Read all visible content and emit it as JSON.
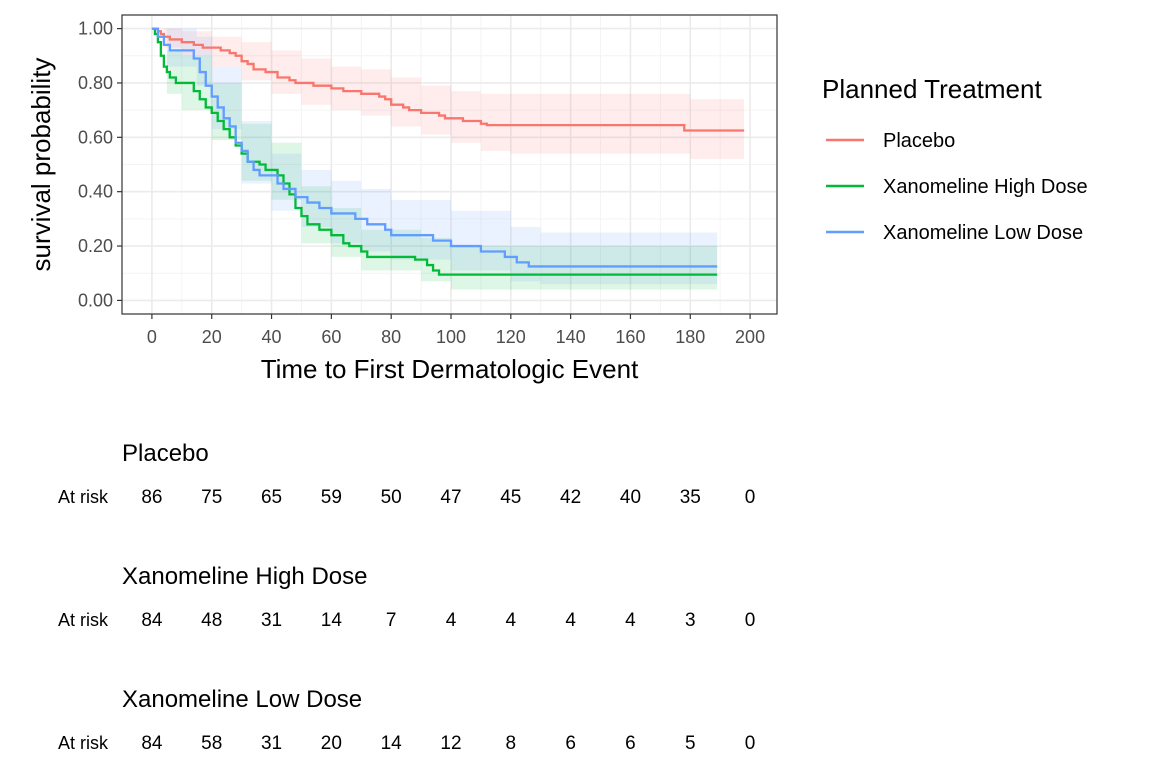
{
  "colors": {
    "placebo": "#F8766D",
    "high_dose": "#00BA38",
    "low_dose": "#619CFF",
    "panel_border": "#333333",
    "grid_major": "#ebebeb",
    "grid_minor": "#f4f4f4"
  },
  "chart_data": {
    "type": "line",
    "subtype": "kaplan-meier step",
    "xlabel": "Time to First Dermatologic Event",
    "ylabel": "survival probability",
    "xlim": [
      -10,
      209
    ],
    "ylim": [
      -0.05,
      1.05
    ],
    "x_ticks": [
      0,
      20,
      40,
      60,
      80,
      100,
      120,
      140,
      160,
      180,
      200
    ],
    "x_tick_labels": [
      "0",
      "20",
      "40",
      "60",
      "80",
      "100",
      "120",
      "140",
      "160",
      "180",
      "200"
    ],
    "y_ticks": [
      0,
      0.2,
      0.4,
      0.6,
      0.8,
      1.0
    ],
    "y_tick_labels": [
      "0.00",
      "0.20",
      "0.40",
      "0.60",
      "0.80",
      "1.00"
    ],
    "grid": true,
    "legend": {
      "title": "Planned Treatment",
      "placement": "right"
    },
    "series": [
      {
        "name": "Placebo",
        "color_key": "placebo",
        "steps": [
          [
            0,
            1.0
          ],
          [
            2,
            0.99
          ],
          [
            3,
            0.98
          ],
          [
            4,
            0.97
          ],
          [
            6,
            0.96
          ],
          [
            10,
            0.95
          ],
          [
            14,
            0.94
          ],
          [
            17,
            0.93
          ],
          [
            23,
            0.92
          ],
          [
            26,
            0.91
          ],
          [
            28,
            0.9
          ],
          [
            30,
            0.88
          ],
          [
            32,
            0.87
          ],
          [
            34,
            0.85
          ],
          [
            38,
            0.84
          ],
          [
            42,
            0.82
          ],
          [
            46,
            0.81
          ],
          [
            48,
            0.8
          ],
          [
            54,
            0.79
          ],
          [
            60,
            0.78
          ],
          [
            64,
            0.77
          ],
          [
            70,
            0.76
          ],
          [
            76,
            0.75
          ],
          [
            78,
            0.74
          ],
          [
            80,
            0.72
          ],
          [
            84,
            0.71
          ],
          [
            86,
            0.7
          ],
          [
            90,
            0.69
          ],
          [
            96,
            0.68
          ],
          [
            98,
            0.67
          ],
          [
            104,
            0.66
          ],
          [
            110,
            0.65
          ],
          [
            112,
            0.645
          ],
          [
            178,
            0.625
          ],
          [
            198,
            0.625
          ]
        ],
        "ci_lower": [
          [
            0,
            1.0
          ],
          [
            4,
            0.93
          ],
          [
            10,
            0.9
          ],
          [
            20,
            0.86
          ],
          [
            30,
            0.81
          ],
          [
            40,
            0.76
          ],
          [
            50,
            0.72
          ],
          [
            60,
            0.7
          ],
          [
            70,
            0.68
          ],
          [
            80,
            0.64
          ],
          [
            90,
            0.61
          ],
          [
            100,
            0.58
          ],
          [
            110,
            0.55
          ],
          [
            120,
            0.54
          ],
          [
            180,
            0.52
          ],
          [
            198,
            0.52
          ]
        ],
        "ci_upper": [
          [
            0,
            1.0
          ],
          [
            4,
            1.0
          ],
          [
            10,
            0.99
          ],
          [
            20,
            0.97
          ],
          [
            30,
            0.95
          ],
          [
            40,
            0.92
          ],
          [
            50,
            0.89
          ],
          [
            60,
            0.86
          ],
          [
            70,
            0.85
          ],
          [
            80,
            0.82
          ],
          [
            90,
            0.79
          ],
          [
            100,
            0.77
          ],
          [
            110,
            0.76
          ],
          [
            120,
            0.76
          ],
          [
            180,
            0.74
          ],
          [
            198,
            0.74
          ]
        ]
      },
      {
        "name": "Xanomeline High Dose",
        "color_key": "high_dose",
        "steps": [
          [
            0,
            1.0
          ],
          [
            1,
            0.98
          ],
          [
            2,
            0.95
          ],
          [
            3,
            0.9
          ],
          [
            4,
            0.86
          ],
          [
            5,
            0.84
          ],
          [
            6,
            0.82
          ],
          [
            8,
            0.8
          ],
          [
            14,
            0.77
          ],
          [
            16,
            0.74
          ],
          [
            18,
            0.71
          ],
          [
            20,
            0.69
          ],
          [
            22,
            0.66
          ],
          [
            24,
            0.63
          ],
          [
            26,
            0.6
          ],
          [
            28,
            0.57
          ],
          [
            30,
            0.54
          ],
          [
            32,
            0.51
          ],
          [
            36,
            0.5
          ],
          [
            38,
            0.48
          ],
          [
            42,
            0.46
          ],
          [
            44,
            0.43
          ],
          [
            46,
            0.39
          ],
          [
            48,
            0.34
          ],
          [
            50,
            0.31
          ],
          [
            52,
            0.28
          ],
          [
            56,
            0.26
          ],
          [
            60,
            0.24
          ],
          [
            64,
            0.21
          ],
          [
            66,
            0.2
          ],
          [
            70,
            0.18
          ],
          [
            72,
            0.16
          ],
          [
            88,
            0.15
          ],
          [
            92,
            0.13
          ],
          [
            94,
            0.11
          ],
          [
            96,
            0.095
          ],
          [
            189,
            0.095
          ]
        ],
        "ci_lower": [
          [
            0,
            1.0
          ],
          [
            5,
            0.76
          ],
          [
            10,
            0.7
          ],
          [
            20,
            0.59
          ],
          [
            30,
            0.44
          ],
          [
            40,
            0.37
          ],
          [
            50,
            0.21
          ],
          [
            60,
            0.16
          ],
          [
            70,
            0.11
          ],
          [
            90,
            0.07
          ],
          [
            100,
            0.04
          ],
          [
            189,
            0.04
          ]
        ],
        "ci_upper": [
          [
            0,
            1.0
          ],
          [
            5,
            0.92
          ],
          [
            10,
            0.9
          ],
          [
            20,
            0.8
          ],
          [
            30,
            0.65
          ],
          [
            40,
            0.58
          ],
          [
            50,
            0.42
          ],
          [
            60,
            0.34
          ],
          [
            70,
            0.26
          ],
          [
            90,
            0.23
          ],
          [
            100,
            0.2
          ],
          [
            189,
            0.2
          ]
        ]
      },
      {
        "name": "Xanomeline Low Dose",
        "color_key": "low_dose",
        "steps": [
          [
            0,
            1.0
          ],
          [
            2,
            0.97
          ],
          [
            4,
            0.94
          ],
          [
            6,
            0.92
          ],
          [
            14,
            0.89
          ],
          [
            16,
            0.84
          ],
          [
            18,
            0.79
          ],
          [
            20,
            0.75
          ],
          [
            22,
            0.71
          ],
          [
            24,
            0.67
          ],
          [
            26,
            0.64
          ],
          [
            28,
            0.58
          ],
          [
            30,
            0.55
          ],
          [
            32,
            0.51
          ],
          [
            34,
            0.48
          ],
          [
            36,
            0.46
          ],
          [
            42,
            0.43
          ],
          [
            44,
            0.41
          ],
          [
            48,
            0.38
          ],
          [
            52,
            0.36
          ],
          [
            56,
            0.34
          ],
          [
            60,
            0.32
          ],
          [
            68,
            0.3
          ],
          [
            72,
            0.28
          ],
          [
            78,
            0.26
          ],
          [
            80,
            0.24
          ],
          [
            94,
            0.22
          ],
          [
            100,
            0.2
          ],
          [
            110,
            0.18
          ],
          [
            118,
            0.16
          ],
          [
            122,
            0.14
          ],
          [
            126,
            0.125
          ],
          [
            189,
            0.125
          ]
        ],
        "ci_lower": [
          [
            0,
            1.0
          ],
          [
            5,
            0.86
          ],
          [
            15,
            0.79
          ],
          [
            20,
            0.63
          ],
          [
            30,
            0.43
          ],
          [
            40,
            0.33
          ],
          [
            50,
            0.27
          ],
          [
            60,
            0.21
          ],
          [
            70,
            0.18
          ],
          [
            80,
            0.15
          ],
          [
            100,
            0.11
          ],
          [
            120,
            0.07
          ],
          [
            130,
            0.06
          ],
          [
            189,
            0.06
          ]
        ],
        "ci_upper": [
          [
            0,
            1.0
          ],
          [
            5,
            1.0
          ],
          [
            15,
            0.97
          ],
          [
            20,
            0.86
          ],
          [
            30,
            0.66
          ],
          [
            40,
            0.54
          ],
          [
            50,
            0.48
          ],
          [
            60,
            0.44
          ],
          [
            70,
            0.41
          ],
          [
            80,
            0.37
          ],
          [
            100,
            0.33
          ],
          [
            120,
            0.27
          ],
          [
            130,
            0.25
          ],
          [
            189,
            0.25
          ]
        ]
      }
    ]
  },
  "risk_table": {
    "row_label": "At risk",
    "groups": [
      {
        "name": "Placebo",
        "values": [
          "86",
          "75",
          "65",
          "59",
          "50",
          "47",
          "45",
          "42",
          "40",
          "35",
          "0"
        ]
      },
      {
        "name": "Xanomeline High Dose",
        "values": [
          "84",
          "48",
          "31",
          "14",
          "7",
          "4",
          "4",
          "4",
          "4",
          "3",
          "0"
        ]
      },
      {
        "name": "Xanomeline Low Dose",
        "values": [
          "84",
          "58",
          "31",
          "20",
          "14",
          "12",
          "8",
          "6",
          "6",
          "5",
          "0"
        ]
      }
    ]
  }
}
